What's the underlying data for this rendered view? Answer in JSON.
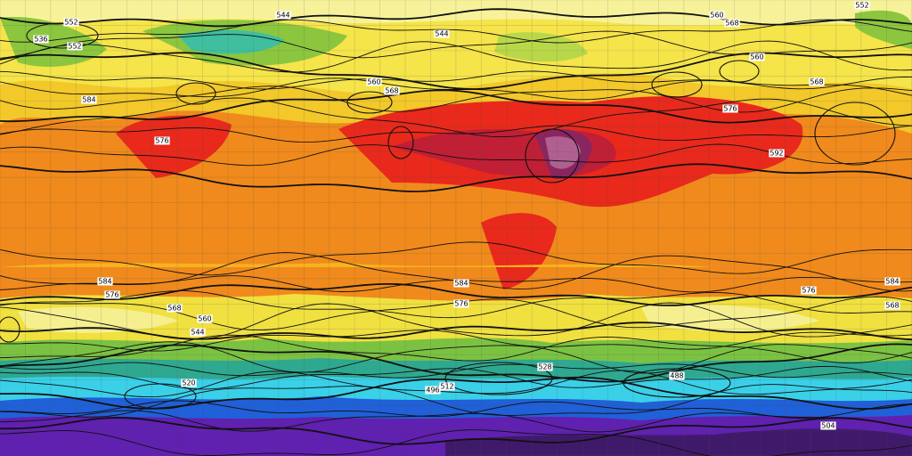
{
  "contour_labels": [
    "544",
    "536",
    "552",
    "552",
    "544",
    "560",
    "568",
    "584",
    "560",
    "552",
    "560",
    "568",
    "576",
    "568",
    "576",
    "592",
    "584",
    "576",
    "568",
    "560",
    "544",
    "584",
    "576",
    "576",
    "584",
    "568",
    "488",
    "496",
    "512",
    "504",
    "520",
    "528"
  ]
}
